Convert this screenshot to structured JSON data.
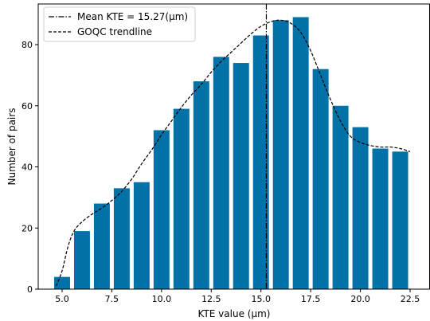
{
  "chart_data": {
    "type": "bar",
    "xlabel": "KTE value (μm)",
    "ylabel": "Number of pairs",
    "xlim": [
      3.8,
      23.5
    ],
    "ylim": [
      0,
      93.3
    ],
    "xticks": [
      5.0,
      7.5,
      10.0,
      12.5,
      15.0,
      17.5,
      20.0,
      22.5
    ],
    "xtick_labels": [
      "5.0",
      "7.5",
      "10.0",
      "12.5",
      "15.0",
      "17.5",
      "20.0",
      "22.5"
    ],
    "yticks": [
      0,
      20,
      40,
      60,
      80
    ],
    "ytick_labels": [
      "0",
      "20",
      "40",
      "60",
      "80"
    ],
    "bar_width": 0.8,
    "bar_color": "#0072A8",
    "x": [
      5,
      6,
      7,
      8,
      9,
      10,
      11,
      12,
      13,
      14,
      15,
      16,
      17,
      18,
      19,
      20,
      21,
      22
    ],
    "values": [
      4,
      19,
      28,
      33,
      35,
      52,
      59,
      68,
      76,
      74,
      83,
      88,
      89,
      72,
      60,
      53,
      46,
      45
    ],
    "mean_line": {
      "x": 15.27,
      "style": "dash-dot",
      "color": "#000000"
    },
    "trendline": {
      "style": "dashed",
      "color": "#000000",
      "x": [
        4.7,
        5.0,
        5.3,
        5.6,
        6.0,
        6.5,
        7.0,
        7.5,
        8.0,
        8.5,
        9.0,
        9.5,
        10.0,
        10.5,
        11.0,
        11.5,
        12.0,
        12.5,
        13.0,
        13.5,
        14.0,
        14.5,
        15.0,
        15.5,
        16.0,
        16.5,
        17.0,
        17.5,
        18.0,
        18.5,
        19.0,
        19.5,
        20.0,
        20.5,
        21.0,
        21.5,
        22.0,
        22.5
      ],
      "y": [
        1,
        6,
        14,
        19,
        22,
        24.5,
        26.5,
        29,
        32,
        36,
        41,
        45.5,
        50.5,
        55,
        59.5,
        63.5,
        67,
        71,
        74.5,
        77.5,
        80.5,
        83.5,
        86,
        87.5,
        88,
        87,
        84,
        78,
        70,
        62,
        55,
        50,
        48,
        47,
        46.5,
        46.5,
        46,
        45
      ]
    },
    "legend": {
      "placement": "top-left",
      "entries": [
        {
          "label": "Mean KTE = 15.27(μm)",
          "style": "dash-dot"
        },
        {
          "label": "GOQC trendline",
          "style": "dashed"
        }
      ]
    },
    "grid": false
  }
}
